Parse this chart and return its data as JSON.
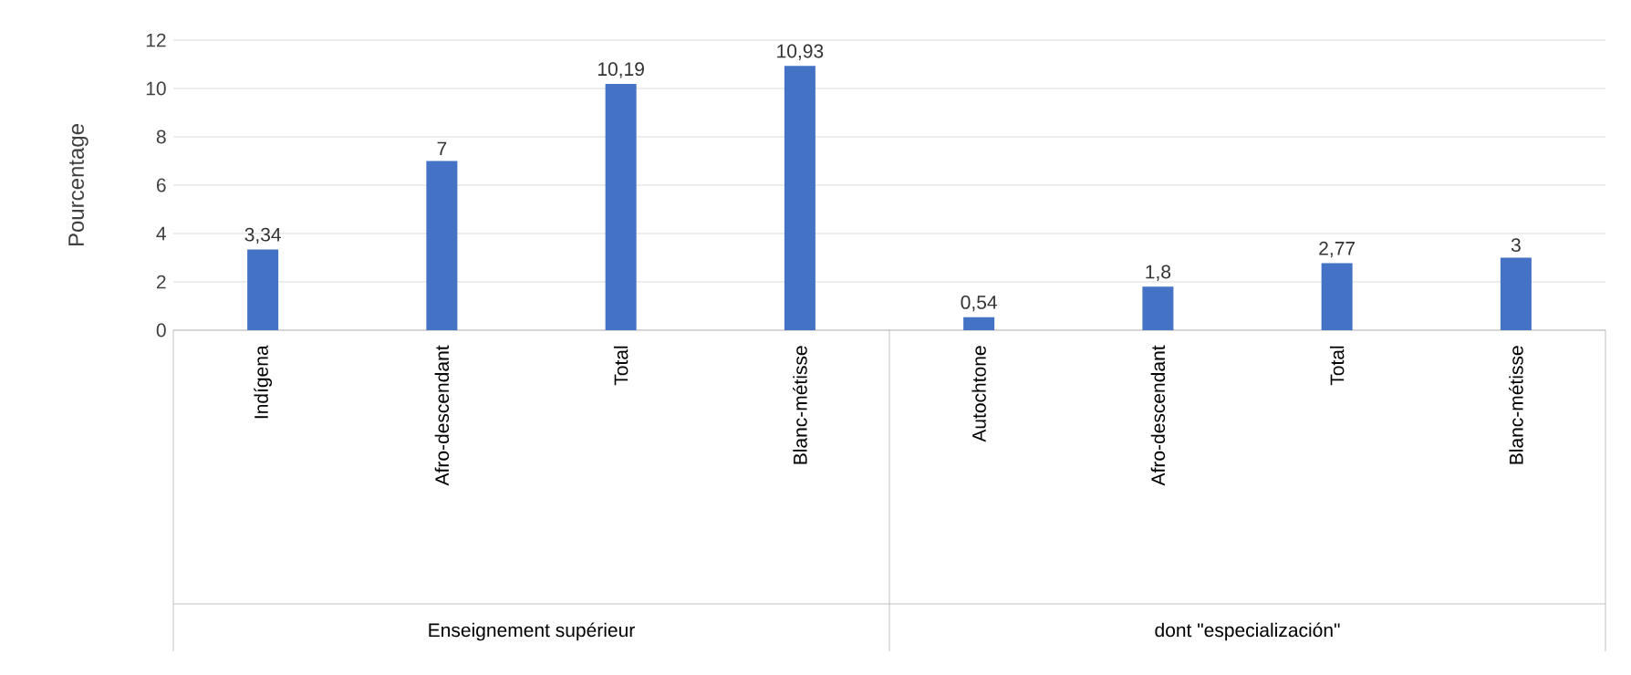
{
  "chart_data": {
    "type": "bar",
    "ylabel": "Pourcentage",
    "categories": [
      "Indígena",
      "Afro-descendant",
      "Total",
      "Blanc-métisse",
      "Autochtone",
      "Afro-descendant",
      "Total",
      "Blanc-métisse"
    ],
    "values": [
      3.34,
      7,
      10.19,
      10.93,
      0.54,
      1.8,
      2.77,
      3
    ],
    "value_labels": [
      "3,34",
      "7",
      "10,19",
      "10,93",
      "0,54",
      "1,8",
      "2,77",
      "3"
    ],
    "color": "#4472c4",
    "ylim": [
      0,
      12
    ],
    "yticks": [
      0,
      2,
      4,
      6,
      8,
      10,
      12
    ],
    "grid": "y",
    "annotations": [
      "Enseignement supérieur",
      "dont \"especialización\""
    ]
  }
}
